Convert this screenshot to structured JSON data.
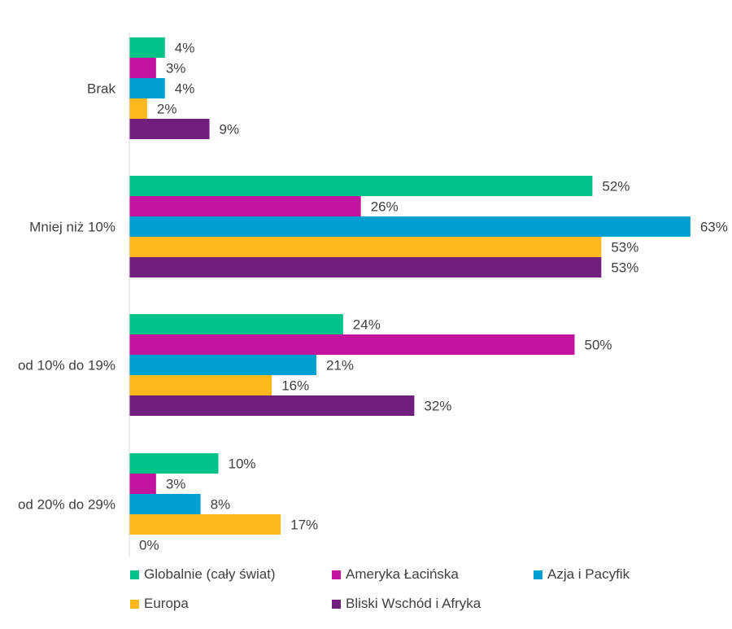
{
  "chart_data": {
    "type": "bar",
    "orientation": "horizontal",
    "categories": [
      "Brak",
      "Mniej niż 10%",
      "od 10% do 19%",
      "od 20% do 29%"
    ],
    "series": [
      {
        "name": "Globalnie (cały świat)",
        "color": "#00C389",
        "values": [
          4,
          52,
          24,
          10
        ],
        "labels": [
          "4%",
          "52%",
          "24%",
          "10%"
        ]
      },
      {
        "name": "Ameryka Łacińska",
        "color": "#C2159F",
        "values": [
          3,
          26,
          50,
          3
        ],
        "labels": [
          "3%",
          "26%",
          "50%",
          "3%"
        ]
      },
      {
        "name": "Azja i Pacyfik",
        "color": "#00A0D2",
        "values": [
          4,
          63,
          21,
          8
        ],
        "labels": [
          "4%",
          "63%",
          "21%",
          "8%"
        ]
      },
      {
        "name": "Europa",
        "color": "#FFB81C",
        "values": [
          2,
          53,
          16,
          17
        ],
        "labels": [
          "2%",
          "53%",
          "16%",
          "17%"
        ]
      },
      {
        "name": "Bliski Wschód i Afryka",
        "color": "#701F7E",
        "values": [
          9,
          53,
          32,
          0
        ],
        "labels": [
          "9%",
          "53%",
          "32%",
          "0%"
        ]
      }
    ],
    "xlim": [
      0,
      63
    ],
    "grid": false,
    "legend_position": "bottom"
  }
}
